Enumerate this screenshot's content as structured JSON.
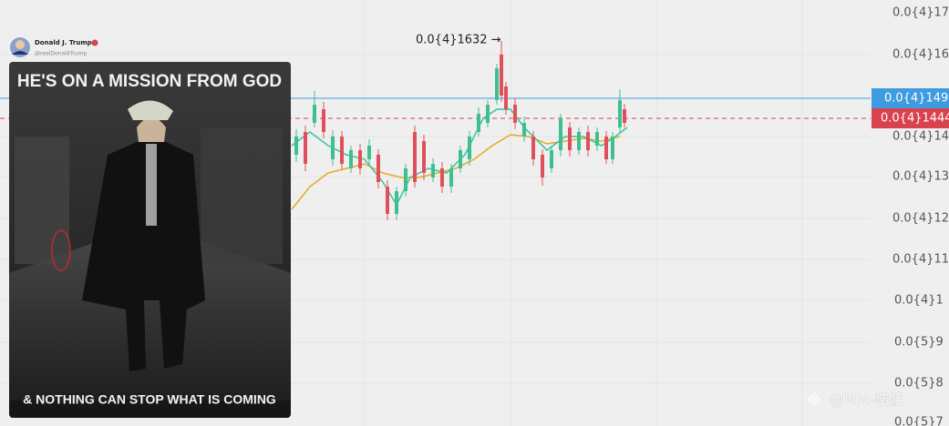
{
  "tweet": {
    "author": "Donald J. Trump",
    "handle": "@realDonaldTrump",
    "image_headline": "HE'S ON A MISSION FROM GOD",
    "image_footer": "& NOTHING CAN STOP WHAT IS COMING"
  },
  "chart": {
    "price_axis": [
      "0.0{4}17",
      "0.0{4}16",
      "0.0{4}14",
      "0.0{4}13",
      "0.0{4}12",
      "0.0{4}11",
      "0.0{4}1",
      "0.0{5}9",
      "0.0{5}8",
      "0.0{5}7"
    ],
    "current_price": "0.0{4}149",
    "marker_price": "0.0{4}1444",
    "high_annotation": "0.0{4}1632 →"
  },
  "watermark": "@MM-喵姐"
}
